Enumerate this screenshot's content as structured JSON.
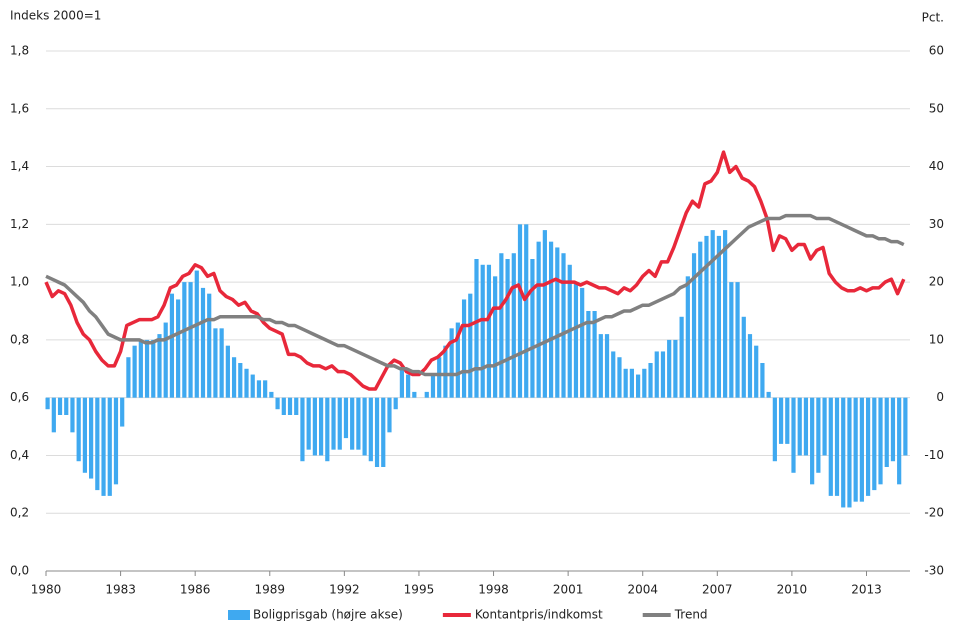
{
  "chart_data": {
    "type": "combo",
    "y_axis_label": "Indeks 2000=1",
    "y2_axis_label": "Pct.",
    "x": [
      1980,
      1980.25,
      1980.5,
      1980.75,
      1981,
      1981.25,
      1981.5,
      1981.75,
      1982,
      1982.25,
      1982.5,
      1982.75,
      1983,
      1983.25,
      1983.5,
      1983.75,
      1984,
      1984.25,
      1984.5,
      1984.75,
      1985,
      1985.25,
      1985.5,
      1985.75,
      1986,
      1986.25,
      1986.5,
      1986.75,
      1987,
      1987.25,
      1987.5,
      1987.75,
      1988,
      1988.25,
      1988.5,
      1988.75,
      1989,
      1989.25,
      1989.5,
      1989.75,
      1990,
      1990.25,
      1990.5,
      1990.75,
      1991,
      1991.25,
      1991.5,
      1991.75,
      1992,
      1992.25,
      1992.5,
      1992.75,
      1993,
      1993.25,
      1993.5,
      1993.75,
      1994,
      1994.25,
      1994.5,
      1994.75,
      1995,
      1995.25,
      1995.5,
      1995.75,
      1996,
      1996.25,
      1996.5,
      1996.75,
      1997,
      1997.25,
      1997.5,
      1997.75,
      1998,
      1998.25,
      1998.5,
      1998.75,
      1999,
      1999.25,
      1999.5,
      1999.75,
      2000,
      2000.25,
      2000.5,
      2000.75,
      2001,
      2001.25,
      2001.5,
      2001.75,
      2002,
      2002.25,
      2002.5,
      2002.75,
      2003,
      2003.25,
      2003.5,
      2003.75,
      2004,
      2004.25,
      2004.5,
      2004.75,
      2005,
      2005.25,
      2005.5,
      2005.75,
      2006,
      2006.25,
      2006.5,
      2006.75,
      2007,
      2007.25,
      2007.5,
      2007.75,
      2008,
      2008.25,
      2008.5,
      2008.75,
      2009,
      2009.25,
      2009.5,
      2009.75,
      2010,
      2010.25,
      2010.5,
      2010.75,
      2011,
      2011.25,
      2011.5,
      2011.75,
      2012,
      2012.25,
      2012.5,
      2012.75,
      2013,
      2013.25,
      2013.5,
      2013.75,
      2014,
      2014.25,
      2014.5
    ],
    "xlim": [
      1980,
      2014.75
    ],
    "xticks": [
      1980,
      1983,
      1986,
      1989,
      1992,
      1995,
      1998,
      2001,
      2004,
      2007,
      2010,
      2013
    ],
    "ylim": [
      0,
      1.8
    ],
    "yticks": [
      {
        "value": 0,
        "label": "0,0"
      },
      {
        "value": 0.2,
        "label": "0,2"
      },
      {
        "value": 0.4,
        "label": "0,4"
      },
      {
        "value": 0.6,
        "label": "0,6"
      },
      {
        "value": 0.8,
        "label": "0,8"
      },
      {
        "value": 1.0,
        "label": "1,0"
      },
      {
        "value": 1.2,
        "label": "1,2"
      },
      {
        "value": 1.4,
        "label": "1,4"
      },
      {
        "value": 1.6,
        "label": "1,6"
      },
      {
        "value": 1.8,
        "label": "1,8"
      }
    ],
    "y2lim": [
      -30,
      60
    ],
    "y2ticks": [
      -30,
      -20,
      -10,
      0,
      10,
      20,
      30,
      40,
      50,
      60
    ],
    "grid": true,
    "legend": "bottom",
    "series": [
      {
        "name": "Boligprisgab (højre akse)",
        "type": "bar",
        "axis": "y2",
        "color": "#3fa9f0",
        "values": [
          -2,
          -6,
          -3,
          -3,
          -6,
          -11,
          -13,
          -14,
          -16,
          -17,
          -17,
          -15,
          -5,
          7,
          9,
          10,
          10,
          10,
          11,
          13,
          18,
          17,
          20,
          20,
          22,
          19,
          18,
          12,
          12,
          9,
          7,
          6,
          5,
          4,
          3,
          3,
          1,
          -2,
          -3,
          -3,
          -3,
          -11,
          -9,
          -10,
          -10,
          -11,
          -9,
          -9,
          -7,
          -9,
          -9,
          -10,
          -11,
          -12,
          -12,
          -6,
          -2,
          5,
          4,
          1,
          0,
          1,
          4,
          7,
          9,
          12,
          13,
          17,
          18,
          24,
          23,
          23,
          21,
          25,
          24,
          25,
          30,
          30,
          24,
          27,
          29,
          27,
          26,
          25,
          23,
          20,
          19,
          15,
          15,
          11,
          11,
          8,
          7,
          5,
          5,
          4,
          5,
          6,
          8,
          8,
          10,
          10,
          14,
          21,
          25,
          27,
          28,
          29,
          28,
          29,
          20,
          20,
          14,
          11,
          9,
          6,
          1,
          -11,
          -8,
          -8,
          -13,
          -10,
          -10,
          -15,
          -13,
          -10,
          -17,
          -17,
          -19,
          -19,
          -18,
          -18,
          -17,
          -16,
          -15,
          -12,
          -11,
          -15,
          -10
        ]
      },
      {
        "name": "Kontantpris/indkomst",
        "type": "line",
        "axis": "y",
        "color": "#e8283a",
        "values": [
          1.0,
          0.95,
          0.97,
          0.96,
          0.92,
          0.86,
          0.82,
          0.8,
          0.76,
          0.73,
          0.71,
          0.71,
          0.76,
          0.85,
          0.86,
          0.87,
          0.87,
          0.87,
          0.88,
          0.92,
          0.98,
          0.99,
          1.02,
          1.03,
          1.06,
          1.05,
          1.02,
          1.03,
          0.97,
          0.95,
          0.94,
          0.92,
          0.93,
          0.9,
          0.89,
          0.86,
          0.84,
          0.83,
          0.82,
          0.75,
          0.75,
          0.74,
          0.72,
          0.71,
          0.71,
          0.7,
          0.71,
          0.69,
          0.69,
          0.68,
          0.66,
          0.64,
          0.63,
          0.63,
          0.67,
          0.71,
          0.73,
          0.72,
          0.69,
          0.68,
          0.68,
          0.7,
          0.73,
          0.74,
          0.76,
          0.79,
          0.8,
          0.85,
          0.85,
          0.86,
          0.87,
          0.87,
          0.91,
          0.91,
          0.94,
          0.98,
          0.99,
          0.94,
          0.97,
          0.99,
          0.99,
          1.0,
          1.01,
          1.0,
          1.0,
          1.0,
          0.99,
          1.0,
          0.99,
          0.98,
          0.98,
          0.97,
          0.96,
          0.98,
          0.97,
          0.99,
          1.02,
          1.04,
          1.02,
          1.07,
          1.07,
          1.12,
          1.18,
          1.24,
          1.28,
          1.26,
          1.34,
          1.35,
          1.38,
          1.45,
          1.38,
          1.4,
          1.36,
          1.35,
          1.33,
          1.28,
          1.22,
          1.11,
          1.16,
          1.15,
          1.11,
          1.13,
          1.13,
          1.08,
          1.11,
          1.12,
          1.03,
          1.0,
          0.98,
          0.97,
          0.97,
          0.98,
          0.97,
          0.98,
          0.98,
          1.0,
          1.01,
          0.96,
          1.01
        ]
      },
      {
        "name": "Trend",
        "type": "line",
        "axis": "y",
        "color": "#808080",
        "values": [
          1.02,
          1.01,
          1.0,
          0.99,
          0.97,
          0.95,
          0.93,
          0.9,
          0.88,
          0.85,
          0.82,
          0.81,
          0.8,
          0.8,
          0.8,
          0.8,
          0.79,
          0.79,
          0.8,
          0.8,
          0.81,
          0.82,
          0.83,
          0.84,
          0.85,
          0.86,
          0.87,
          0.87,
          0.88,
          0.88,
          0.88,
          0.88,
          0.88,
          0.88,
          0.88,
          0.87,
          0.87,
          0.86,
          0.86,
          0.85,
          0.85,
          0.84,
          0.83,
          0.82,
          0.81,
          0.8,
          0.79,
          0.78,
          0.78,
          0.77,
          0.76,
          0.75,
          0.74,
          0.73,
          0.72,
          0.71,
          0.71,
          0.7,
          0.7,
          0.69,
          0.69,
          0.68,
          0.68,
          0.68,
          0.68,
          0.68,
          0.68,
          0.69,
          0.69,
          0.7,
          0.7,
          0.71,
          0.71,
          0.72,
          0.73,
          0.74,
          0.75,
          0.76,
          0.77,
          0.78,
          0.79,
          0.8,
          0.81,
          0.82,
          0.83,
          0.84,
          0.85,
          0.86,
          0.86,
          0.87,
          0.88,
          0.88,
          0.89,
          0.9,
          0.9,
          0.91,
          0.92,
          0.92,
          0.93,
          0.94,
          0.95,
          0.96,
          0.98,
          0.99,
          1.01,
          1.03,
          1.05,
          1.07,
          1.09,
          1.11,
          1.13,
          1.15,
          1.17,
          1.19,
          1.2,
          1.21,
          1.22,
          1.22,
          1.22,
          1.23,
          1.23,
          1.23,
          1.23,
          1.23,
          1.22,
          1.22,
          1.22,
          1.21,
          1.2,
          1.19,
          1.18,
          1.17,
          1.16,
          1.16,
          1.15,
          1.15,
          1.14,
          1.14,
          1.13
        ]
      }
    ]
  }
}
